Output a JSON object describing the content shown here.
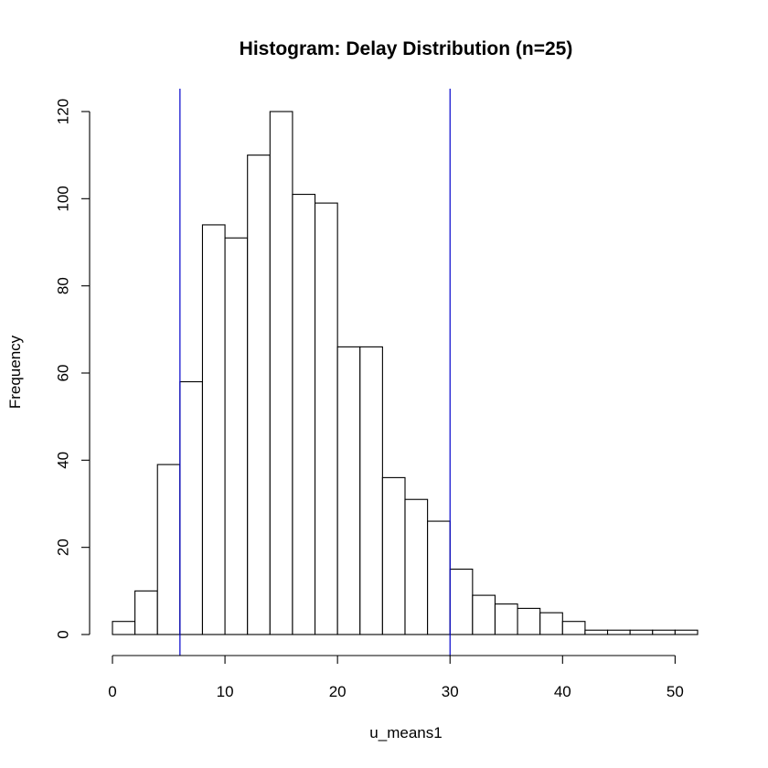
{
  "chart_data": {
    "type": "bar",
    "title": "Histogram: Delay Distribution (n=25)",
    "xlabel": "u_means1",
    "ylabel": "Frequency",
    "bin_edges": [
      0,
      2,
      4,
      6,
      8,
      10,
      12,
      14,
      16,
      18,
      20,
      22,
      24,
      26,
      28,
      30,
      32,
      34,
      36,
      38,
      40,
      42,
      44,
      46,
      48,
      50,
      52
    ],
    "values": [
      3,
      10,
      39,
      58,
      94,
      91,
      110,
      120,
      101,
      99,
      66,
      66,
      36,
      31,
      26,
      15,
      9,
      7,
      6,
      5,
      3,
      1,
      1,
      1,
      1,
      1
    ],
    "xlim": [
      0,
      52
    ],
    "ylim": [
      0,
      125
    ],
    "x_ticks": [
      0,
      10,
      20,
      30,
      40,
      50
    ],
    "y_ticks": [
      0,
      20,
      40,
      60,
      80,
      100,
      120
    ],
    "x_tick_labels": [
      "0",
      "10",
      "20",
      "30",
      "40",
      "50"
    ],
    "y_tick_labels": [
      "0",
      "20",
      "40",
      "60",
      "80",
      "100",
      "120"
    ],
    "reference_lines": [
      {
        "x": 6,
        "color": "#0000cc"
      },
      {
        "x": 30,
        "color": "#0000cc"
      }
    ],
    "grid": false,
    "bar_fill": "#ffffff",
    "bar_stroke": "#000000"
  }
}
